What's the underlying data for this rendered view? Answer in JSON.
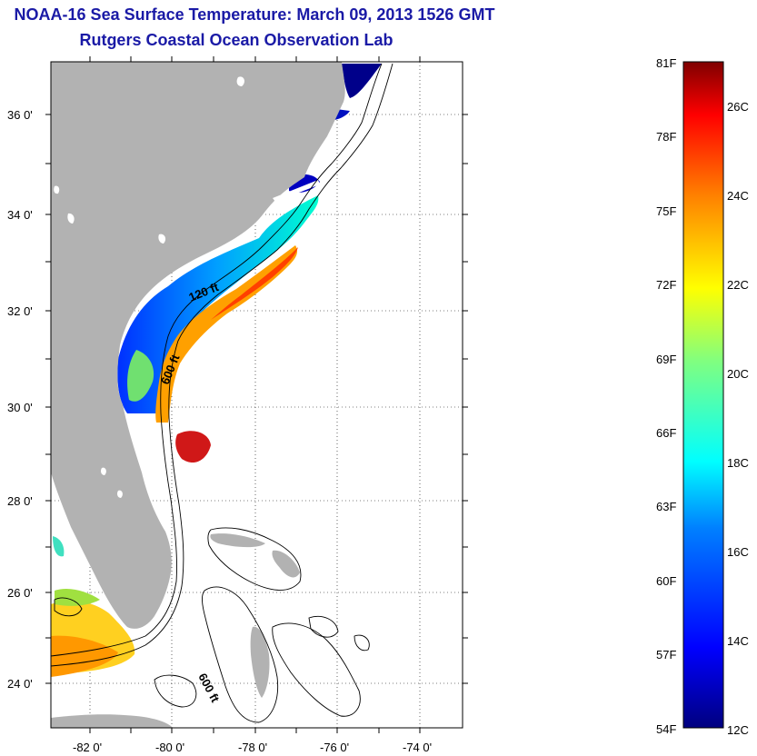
{
  "title": "NOAA-16 Sea Surface Temperature:  March 09, 2013 1526 GMT",
  "subtitle": "Rutgers Coastal Ocean Observation Lab",
  "lat_labels": [
    "36 0'",
    "34 0'",
    "32 0'",
    "30 0'",
    "28 0'",
    "26 0'",
    "24 0'"
  ],
  "lon_labels": [
    "-82 0'",
    "-80 0'",
    "-78 0'",
    "-76 0'",
    "-74 0'"
  ],
  "contour_labels": [
    "120 ft",
    "600 ft",
    "600 ft"
  ],
  "colorbar": {
    "fahrenheit": [
      "81F",
      "78F",
      "75F",
      "72F",
      "69F",
      "66F",
      "63F",
      "60F",
      "57F",
      "54F"
    ],
    "celsius": [
      "26C",
      "24C",
      "22C",
      "20C",
      "18C",
      "16C",
      "14C",
      "12C"
    ],
    "colors": [
      "#00007f",
      "#0000ff",
      "#0080ff",
      "#00ffff",
      "#80ff80",
      "#ffff00",
      "#ff8000",
      "#ff0000",
      "#7f0000"
    ]
  },
  "colors": {
    "land": "#b0b0b0",
    "title": "#1a1aa6"
  }
}
